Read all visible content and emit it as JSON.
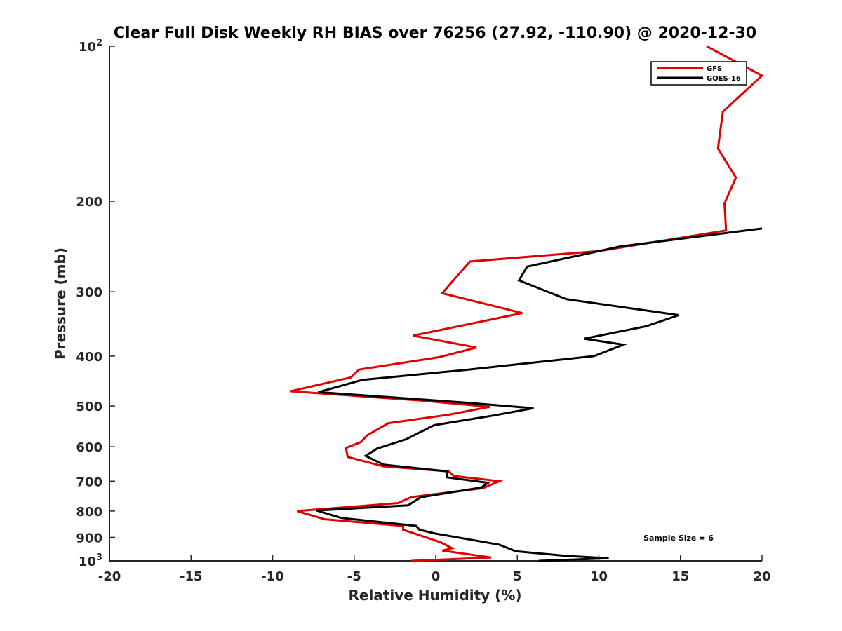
{
  "chart_data": {
    "type": "line",
    "title": "Clear Full Disk Weekly RH BIAS over 76256 (27.92, -110.90) @ 2020-12-30",
    "xlabel": "Relative Humidity (%)",
    "ylabel": "Pressure (mb)",
    "xlim": [
      -20,
      20
    ],
    "ylim": [
      100,
      1000
    ],
    "yscale": "log",
    "yreversed": true,
    "grid": false,
    "x_ticks": [
      {
        "value": -20,
        "label": "-20"
      },
      {
        "value": -15,
        "label": "-15"
      },
      {
        "value": -10,
        "label": "-10"
      },
      {
        "value": -5,
        "label": "-5"
      },
      {
        "value": 0,
        "label": "0"
      },
      {
        "value": 5,
        "label": "5"
      },
      {
        "value": 10,
        "label": "10"
      },
      {
        "value": 15,
        "label": "15"
      },
      {
        "value": 20,
        "label": "20"
      }
    ],
    "y_ticks": [
      {
        "value": 100,
        "base": "10",
        "exp": "2"
      },
      {
        "value": 200,
        "label": "200"
      },
      {
        "value": 300,
        "label": "300"
      },
      {
        "value": 400,
        "label": "400"
      },
      {
        "value": 500,
        "label": "500"
      },
      {
        "value": 600,
        "label": "600"
      },
      {
        "value": 700,
        "label": "700"
      },
      {
        "value": 800,
        "label": "800"
      },
      {
        "value": 900,
        "label": "900"
      },
      {
        "value": 1000,
        "base": "10",
        "exp": "3"
      }
    ],
    "legend_position": "top-right",
    "annotation": "Sample Size = 6",
    "series": [
      {
        "name": "GFS",
        "color": "#e00000",
        "points": [
          [
            16.6,
            100
          ],
          [
            20.0,
            114
          ],
          [
            17.6,
            134
          ],
          [
            17.3,
            158
          ],
          [
            18.4,
            180
          ],
          [
            17.7,
            202
          ],
          [
            17.8,
            228
          ],
          [
            10.0,
            250
          ],
          [
            2.1,
            262
          ],
          [
            1.2,
            282
          ],
          [
            0.4,
            302
          ],
          [
            5.3,
            330
          ],
          [
            -1.4,
            365
          ],
          [
            2.5,
            385
          ],
          [
            0.2,
            402
          ],
          [
            -4.7,
            425
          ],
          [
            -5.2,
            440
          ],
          [
            -8.9,
            468
          ],
          [
            -0.9,
            488
          ],
          [
            3.3,
            502
          ],
          [
            0.8,
            520
          ],
          [
            -2.9,
            540
          ],
          [
            -4.2,
            570
          ],
          [
            -4.6,
            588
          ],
          [
            -5.5,
            603
          ],
          [
            -5.4,
            628
          ],
          [
            -3.2,
            655
          ],
          [
            0.8,
            670
          ],
          [
            1.1,
            684
          ],
          [
            3.9,
            700
          ],
          [
            2.9,
            722
          ],
          [
            -1.5,
            752
          ],
          [
            -2.3,
            772
          ],
          [
            -8.5,
            800
          ],
          [
            -6.8,
            830
          ],
          [
            -2.0,
            855
          ],
          [
            -2.0,
            870
          ],
          [
            0.3,
            920
          ],
          [
            1.0,
            945
          ],
          [
            0.4,
            955
          ],
          [
            3.4,
            985
          ],
          [
            -1.5,
            1000
          ]
        ]
      },
      {
        "name": "GOES-16",
        "color": "#000000",
        "points": [
          [
            20.0,
            226
          ],
          [
            11.3,
            245
          ],
          [
            5.6,
            268
          ],
          [
            5.1,
            285
          ],
          [
            8.0,
            310
          ],
          [
            14.9,
            333
          ],
          [
            12.9,
            350
          ],
          [
            9.1,
            370
          ],
          [
            11.5,
            380
          ],
          [
            9.7,
            400
          ],
          [
            2.0,
            425
          ],
          [
            -4.5,
            445
          ],
          [
            -7.2,
            470
          ],
          [
            1.6,
            492
          ],
          [
            6.0,
            505
          ],
          [
            3.5,
            522
          ],
          [
            -0.1,
            545
          ],
          [
            -1.8,
            580
          ],
          [
            -3.6,
            605
          ],
          [
            -4.3,
            625
          ],
          [
            -3.2,
            650
          ],
          [
            0.7,
            670
          ],
          [
            0.7,
            688
          ],
          [
            3.2,
            705
          ],
          [
            2.8,
            720
          ],
          [
            -0.9,
            752
          ],
          [
            -1.7,
            780
          ],
          [
            -7.3,
            798
          ],
          [
            -5.8,
            825
          ],
          [
            -1.2,
            855
          ],
          [
            -1.0,
            870
          ],
          [
            -0.0,
            885
          ],
          [
            3.9,
            930
          ],
          [
            4.9,
            958
          ],
          [
            8.0,
            978
          ],
          [
            10.6,
            988
          ],
          [
            6.3,
            1000
          ]
        ]
      }
    ]
  }
}
